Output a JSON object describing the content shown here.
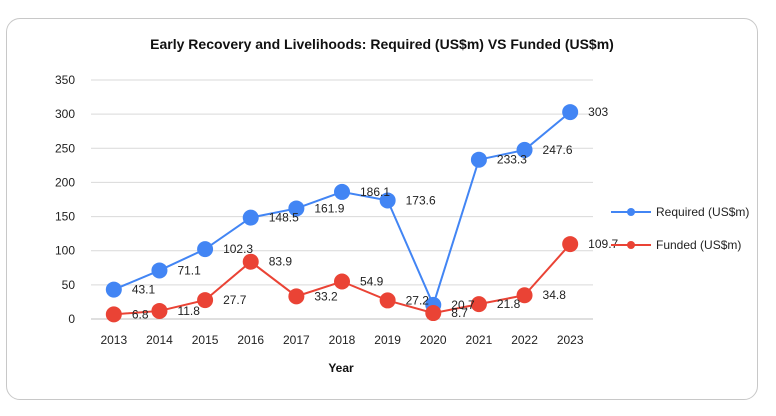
{
  "chart_data": {
    "type": "line",
    "title": "Early Recovery and Livelihoods: Required (US$m) VS Funded (US$m)",
    "xlabel": "Year",
    "ylabel": "",
    "categories": [
      "2013",
      "2014",
      "2015",
      "2016",
      "2017",
      "2018",
      "2019",
      "2020",
      "2021",
      "2022",
      "2023"
    ],
    "ylim": [
      0,
      350
    ],
    "yticks": [
      0,
      50,
      100,
      150,
      200,
      250,
      300,
      350
    ],
    "grid": true,
    "legend_position": "right",
    "series": [
      {
        "name": "Required (US$m)",
        "color": "#4285f4",
        "values": [
          43.1,
          71.1,
          102.3,
          148.5,
          161.9,
          186.1,
          173.6,
          20.7,
          233.3,
          247.6,
          303
        ],
        "labels": [
          "43.1",
          "71.1",
          "102.3",
          "148.5",
          "161.9",
          "186.1",
          "173.6",
          "20.7",
          "233.3",
          "247.6",
          "303"
        ]
      },
      {
        "name": "Funded (US$m)",
        "color": "#ea4335",
        "values": [
          6.8,
          11.8,
          27.7,
          83.9,
          33.2,
          54.9,
          27.2,
          8.7,
          21.8,
          34.8,
          109.7
        ],
        "labels": [
          "6.8",
          "11.8",
          "27.7",
          "83.9",
          "33.2",
          "54.9",
          "27.2",
          "8.7",
          "21.8",
          "34.8",
          "109.7"
        ]
      }
    ]
  }
}
